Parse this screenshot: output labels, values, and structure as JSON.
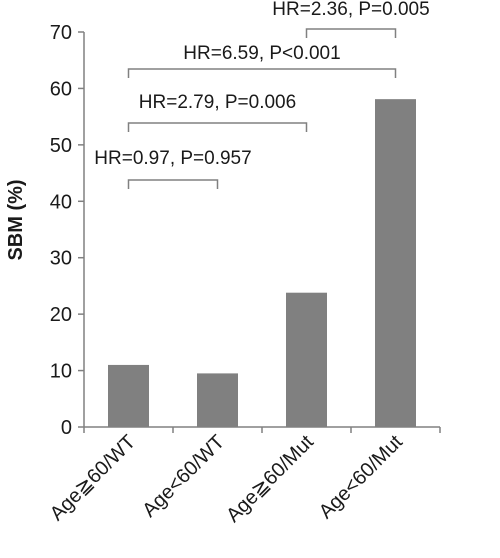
{
  "chart_data": {
    "type": "bar",
    "categories": [
      "Age≧60/WT",
      "Age<60/WT",
      "Age≧60/Mut",
      "Age<60/Mut"
    ],
    "values": [
      11,
      9.5,
      23.8,
      58.1
    ],
    "ylabel": "SBM (%)",
    "xlabel": "",
    "ylim": [
      0,
      70
    ],
    "yticks": [
      0,
      10,
      20,
      30,
      40,
      50,
      60,
      70
    ],
    "bar_color": "#808080",
    "grid": false,
    "annotations": [
      {
        "from": 0,
        "to": 1,
        "text": "HR=0.97, P=0.957"
      },
      {
        "from": 0,
        "to": 2,
        "text": "HR=2.79, P=0.006"
      },
      {
        "from": 0,
        "to": 3,
        "text": "HR=6.59, P<0.001"
      },
      {
        "from": 2,
        "to": 3,
        "text": "HR=2.36, P=0.005"
      }
    ]
  }
}
